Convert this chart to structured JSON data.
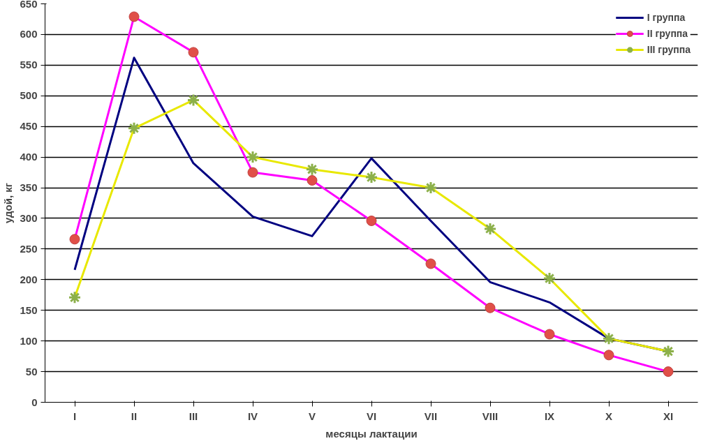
{
  "chart_data": {
    "type": "line",
    "xlabel": "месяцы лактации",
    "ylabel": "удой, кг",
    "categories": [
      "I",
      "II",
      "III",
      "IV",
      "V",
      "VI",
      "VII",
      "VIII",
      "IX",
      "X",
      "XI"
    ],
    "series": [
      {
        "name": "I группа",
        "color": "#000080",
        "marker": "none",
        "values": [
          216,
          562,
          390,
          303,
          271,
          398,
          296,
          196,
          163,
          104,
          83
        ]
      },
      {
        "name": "II группа",
        "color": "#ff00ff",
        "marker": "circle",
        "values": [
          266,
          629,
          571,
          375,
          362,
          296,
          226,
          154,
          111,
          77,
          50
        ]
      },
      {
        "name": "III группа",
        "color": "#e8e800",
        "marker": "cross",
        "values": [
          171,
          447,
          493,
          400,
          380,
          367,
          350,
          283,
          202,
          104,
          83
        ]
      }
    ],
    "ylim": [
      0,
      650
    ],
    "yticks": [
      0,
      50,
      100,
      150,
      200,
      250,
      300,
      350,
      400,
      450,
      500,
      550,
      600,
      650
    ],
    "grid": "y",
    "legend": "top right"
  }
}
